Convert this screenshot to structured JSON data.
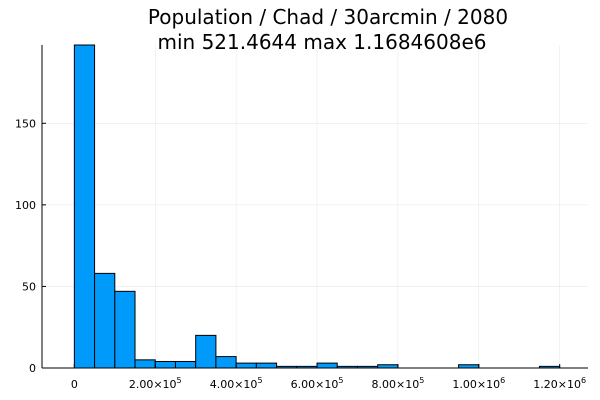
{
  "chart_data": {
    "type": "bar",
    "title_line1": "Population / Chad / 30arcmin / 2080",
    "title_line2": "min 521.4644  max 1.1684608e6",
    "xlabel": "",
    "ylabel": "",
    "xlim": [
      -80000,
      1270000
    ],
    "ylim": [
      0,
      198
    ],
    "grid": true,
    "legend": "none",
    "bar_color": "#009AFA",
    "bin_width": 50000,
    "bins": [
      {
        "x0": 0,
        "x1": 50000,
        "value": 198
      },
      {
        "x0": 50000,
        "x1": 100000,
        "value": 58
      },
      {
        "x0": 100000,
        "x1": 150000,
        "value": 47
      },
      {
        "x0": 150000,
        "x1": 200000,
        "value": 5
      },
      {
        "x0": 200000,
        "x1": 250000,
        "value": 4
      },
      {
        "x0": 250000,
        "x1": 300000,
        "value": 4
      },
      {
        "x0": 300000,
        "x1": 350000,
        "value": 20
      },
      {
        "x0": 350000,
        "x1": 400000,
        "value": 7
      },
      {
        "x0": 400000,
        "x1": 450000,
        "value": 3
      },
      {
        "x0": 450000,
        "x1": 500000,
        "value": 3
      },
      {
        "x0": 500000,
        "x1": 550000,
        "value": 1
      },
      {
        "x0": 550000,
        "x1": 600000,
        "value": 1
      },
      {
        "x0": 600000,
        "x1": 650000,
        "value": 3
      },
      {
        "x0": 650000,
        "x1": 700000,
        "value": 1
      },
      {
        "x0": 700000,
        "x1": 750000,
        "value": 1
      },
      {
        "x0": 750000,
        "x1": 800000,
        "value": 2
      },
      {
        "x0": 800000,
        "x1": 850000,
        "value": 0
      },
      {
        "x0": 850000,
        "x1": 900000,
        "value": 0
      },
      {
        "x0": 900000,
        "x1": 950000,
        "value": 0
      },
      {
        "x0": 950000,
        "x1": 1000000,
        "value": 2
      },
      {
        "x0": 1000000,
        "x1": 1050000,
        "value": 0
      },
      {
        "x0": 1050000,
        "x1": 1100000,
        "value": 0
      },
      {
        "x0": 1100000,
        "x1": 1150000,
        "value": 0
      },
      {
        "x0": 1150000,
        "x1": 1200000,
        "value": 1
      }
    ],
    "x_ticks": [
      {
        "value": 0,
        "mant": "0",
        "exp": ""
      },
      {
        "value": 200000,
        "mant": "2.00×10",
        "exp": "5"
      },
      {
        "value": 400000,
        "mant": "4.00×10",
        "exp": "5"
      },
      {
        "value": 600000,
        "mant": "6.00×10",
        "exp": "5"
      },
      {
        "value": 800000,
        "mant": "8.00×10",
        "exp": "5"
      },
      {
        "value": 1000000,
        "mant": "1.00×10",
        "exp": "6"
      },
      {
        "value": 1200000,
        "mant": "1.20×10",
        "exp": "6"
      }
    ],
    "y_ticks": [
      {
        "value": 0,
        "label": "0"
      },
      {
        "value": 50,
        "label": "50"
      },
      {
        "value": 100,
        "label": "100"
      },
      {
        "value": 150,
        "label": "150"
      }
    ]
  }
}
